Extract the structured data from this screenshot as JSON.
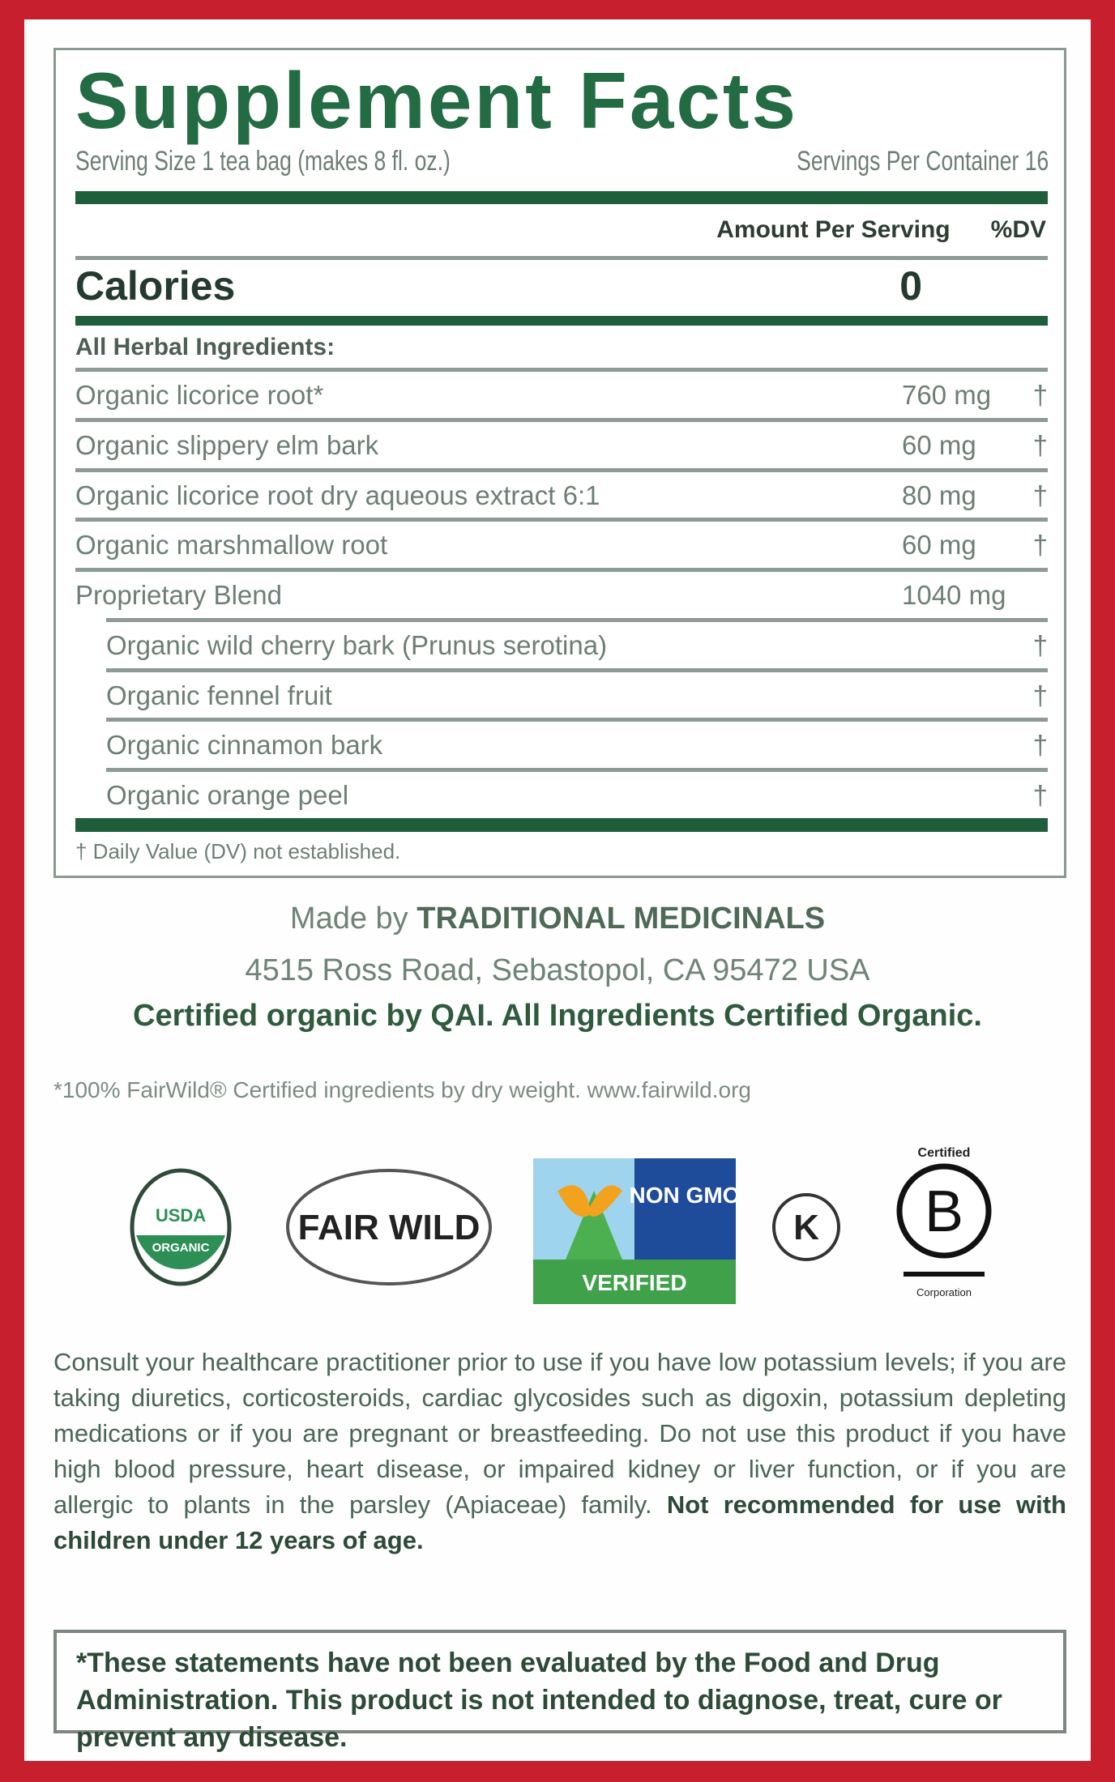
{
  "facts": {
    "title": "Supplement Facts",
    "serving_size": "Serving Size 1 tea bag (makes 8 fl. oz.)",
    "servings_per_container": "Servings Per Container 16",
    "amount_header": "Amount Per Serving",
    "dv_header": "%DV",
    "calories_label": "Calories",
    "calories_value": "0",
    "herbal_label": "All Herbal Ingredients:",
    "rows": [
      {
        "name": "Organic licorice root*",
        "amount": "760 mg",
        "dv": "†"
      },
      {
        "name": "Organic slippery elm bark",
        "amount": "60 mg",
        "dv": "†"
      },
      {
        "name": "Organic licorice root dry aqueous extract 6:1",
        "amount": "80 mg",
        "dv": "†"
      },
      {
        "name": "Organic marshmallow root",
        "amount": "60 mg",
        "dv": "†"
      },
      {
        "name": "Proprietary Blend",
        "amount": "1040 mg",
        "dv": ""
      },
      {
        "name": "Organic wild cherry bark (Prunus serotina)",
        "amount": "",
        "dv": "†"
      },
      {
        "name": "Organic fennel fruit",
        "amount": "",
        "dv": "†"
      },
      {
        "name": "Organic cinnamon bark",
        "amount": "",
        "dv": "†"
      },
      {
        "name": "Organic orange peel",
        "amount": "",
        "dv": "†"
      }
    ],
    "footnote": "† Daily Value (DV) not established."
  },
  "maker": {
    "prefix": "Made by",
    "brand": "TRADITIONAL MEDICINALS",
    "address": "4515 Ross Road, Sebastopol, CA 95472 USA",
    "certified": "Certified organic by QAI. All Ingredients Certified Organic.",
    "fairwild": "*100% FairWild® Certified ingredients by dry weight. www.fairwild.org"
  },
  "logos": {
    "usda_top": "USDA",
    "usda_bottom": "ORGANIC",
    "fairwild": "FAIR WILD",
    "nongmo": "NON GMO",
    "nongmo_verified": "VERIFIED",
    "kosher": "K",
    "bcorp_top": "Certified",
    "bcorp": "B",
    "bcorp_bottom": "Corporation"
  },
  "warning": {
    "text1": "Consult your healthcare practitioner prior to use if you have low potassium levels; if you are taking diuretics, corticosteroids, cardiac glycosides such as digoxin, potassium depleting medications or if you are pregnant or breastfeeding. Do not use this product if you have high blood pressure, heart disease, or impaired kidney or liver function, or if you are allergic to plants in the parsley (Apiaceae) family.",
    "text2": "Not recommended for use with children under 12 years of age."
  },
  "disclaimer": "*These statements have not been evaluated by the Food and Drug Administration. This product is not intended to diagnose, treat, cure or prevent any disease.",
  "colors": {
    "border_red": "#c81f2e",
    "label_green": "#236b43"
  }
}
